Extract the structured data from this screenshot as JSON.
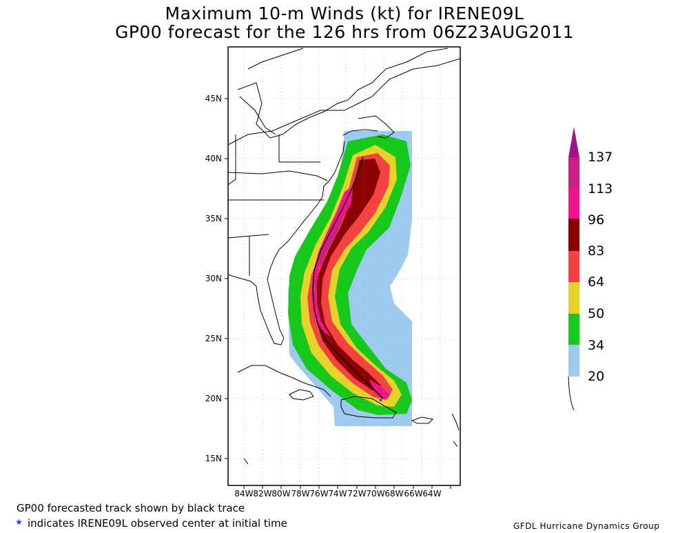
{
  "title": {
    "line1": "Maximum 10-m Winds (kt) for IRENE09L",
    "line2": "GP00 forecast for the 126 hrs from 06Z23AUG2011"
  },
  "latitude_labels": [
    "45N",
    "40N",
    "35N",
    "30N",
    "25N",
    "20N",
    "15N"
  ],
  "longitude_labels": [
    "84W",
    "82W",
    "80W",
    "78W",
    "76W",
    "74W",
    "72W",
    "70W",
    "68W",
    "66W",
    "64W"
  ],
  "legend": {
    "levels": [
      "137",
      "113",
      "96",
      "83",
      "64",
      "50",
      "34",
      "20"
    ],
    "colors": [
      "#a0128a",
      "#cd1e86",
      "#f0148c",
      "#8b0000",
      "#f44242",
      "#e6d22a",
      "#16c81a",
      "#9fcaf0"
    ]
  },
  "footer": {
    "track_note": "GP00 forecasted track shown by black trace",
    "star_symbol": "★",
    "star_note": "indicates IRENE09L observed center at initial time",
    "credit": "GFDL Hurricane Dynamics Group"
  },
  "colors": {
    "ts_green": "#16c81a",
    "gale_blue": "#9fcaf0",
    "star_blue": "#1e3cff"
  }
}
